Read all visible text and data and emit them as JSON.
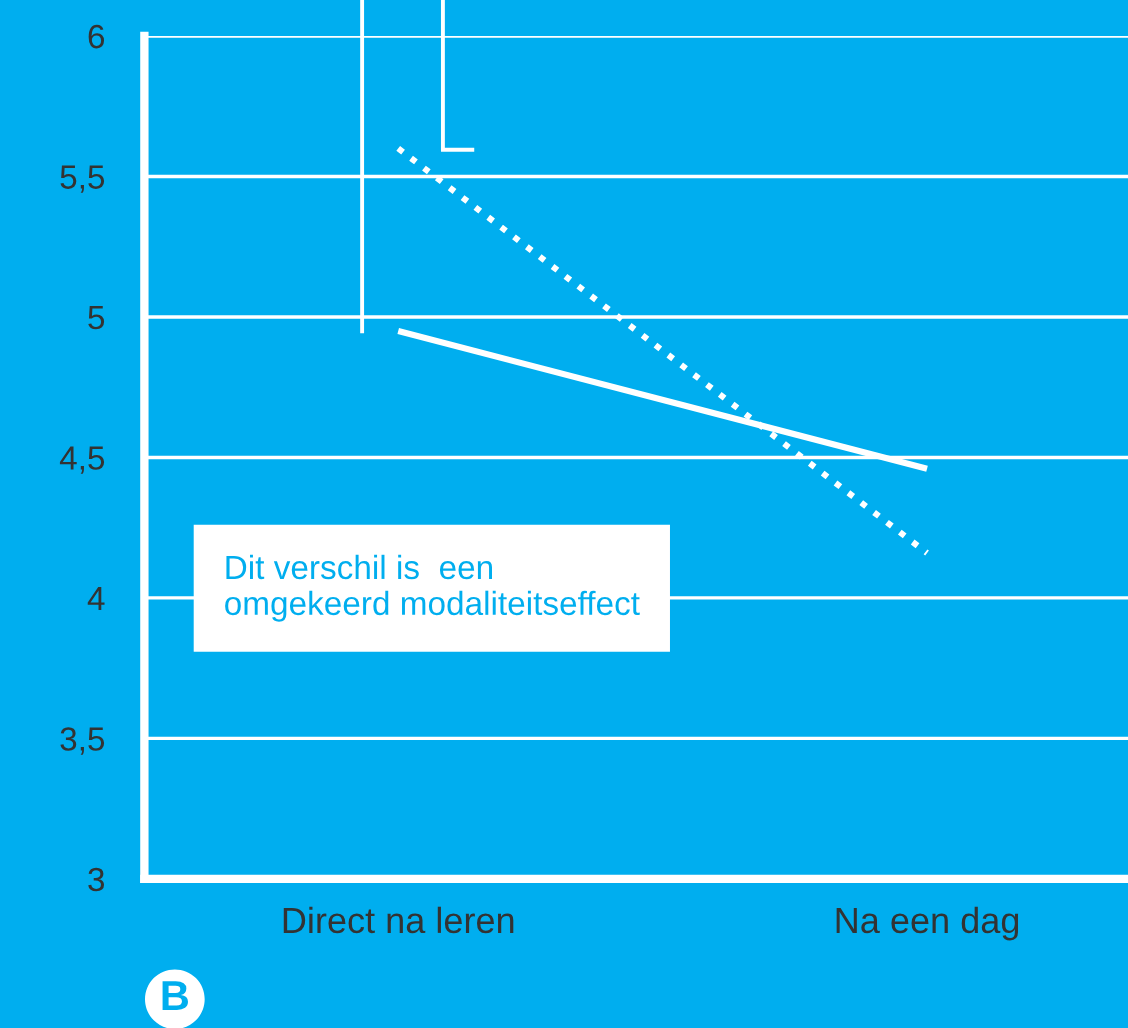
{
  "chart_data": {
    "type": "line",
    "categories": [
      "Direct na leren",
      "Na een dag"
    ],
    "series": [
      {
        "color": "#ffffff",
        "values": [
          4.95,
          4.46
        ],
        "line_style": "solid"
      },
      {
        "color": "#ffffff",
        "values": [
          5.6,
          4.16
        ],
        "line_style": "dotted"
      }
    ],
    "ylim": [
      3,
      6
    ],
    "yticks": [
      3,
      {
        "value": 3.5,
        "label": "3,5"
      },
      4,
      {
        "value": 4.5,
        "label": "4,5"
      },
      5,
      {
        "value": 5.5,
        "label": "5,5"
      },
      6
    ],
    "grid": "y",
    "marker": "none",
    "annotations": [
      "Dit verschil is  een\nomgekeerd modaliteitseffect",
      "B"
    ]
  }
}
